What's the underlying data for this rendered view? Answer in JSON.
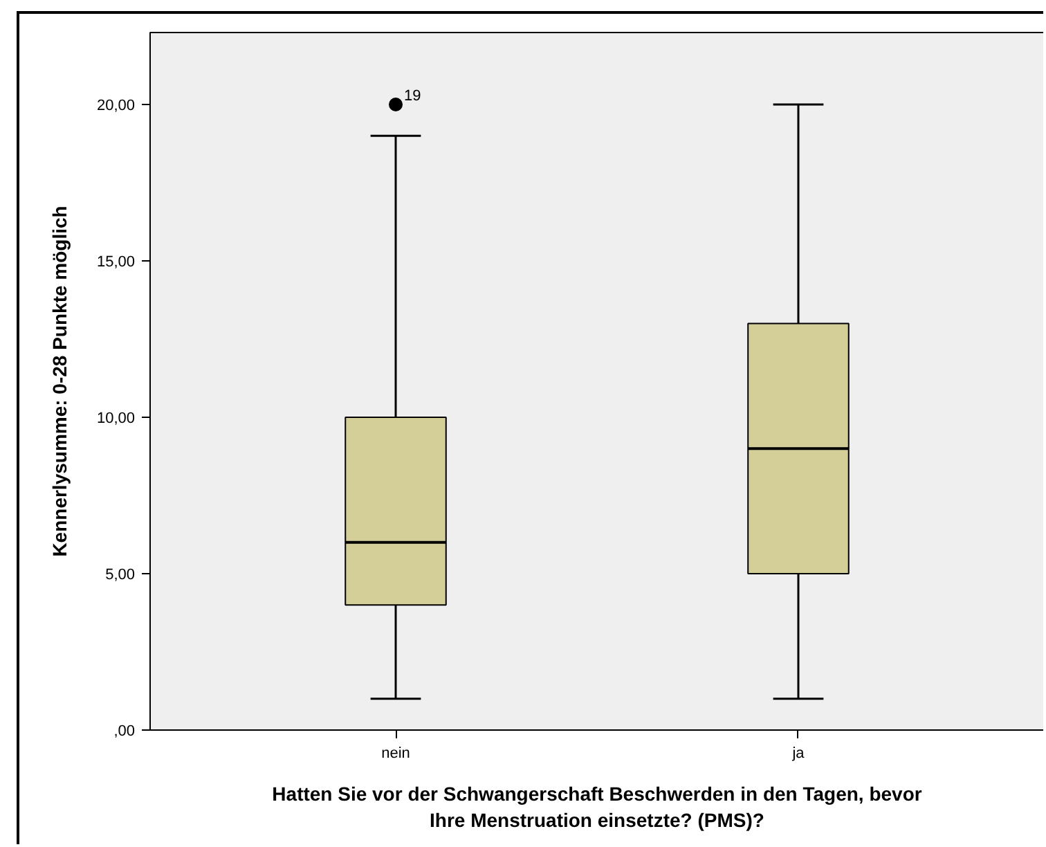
{
  "chart_data": {
    "type": "box",
    "ylabel": "Kennerlysumme: 0-28 Punkte möglich",
    "xlabel": "Hatten Sie vor der Schwangerschaft Beschwerden in den Tagen, bevor\nIhre Menstruation einsetzte? (PMS)?",
    "categories": [
      "nein",
      "ja"
    ],
    "series": [
      {
        "color": "#d4cf98",
        "boxes": [
          {
            "low": 1,
            "q1": 4,
            "median": 6,
            "q3": 10,
            "high": 19,
            "outliers": [
              20
            ]
          },
          {
            "low": 1,
            "q1": 5,
            "median": 9,
            "q3": 13,
            "high": 20
          }
        ]
      }
    ],
    "ylim": [
      0,
      22.3
    ],
    "yticks": [
      {
        "value": 0,
        "label": ",00"
      },
      {
        "value": 5,
        "label": "5,00"
      },
      {
        "value": 10,
        "label": "10,00"
      },
      {
        "value": 15,
        "label": "15,00"
      },
      {
        "value": 20,
        "label": "20,00"
      }
    ],
    "marker": "circle",
    "annotations": [
      "19"
    ]
  }
}
